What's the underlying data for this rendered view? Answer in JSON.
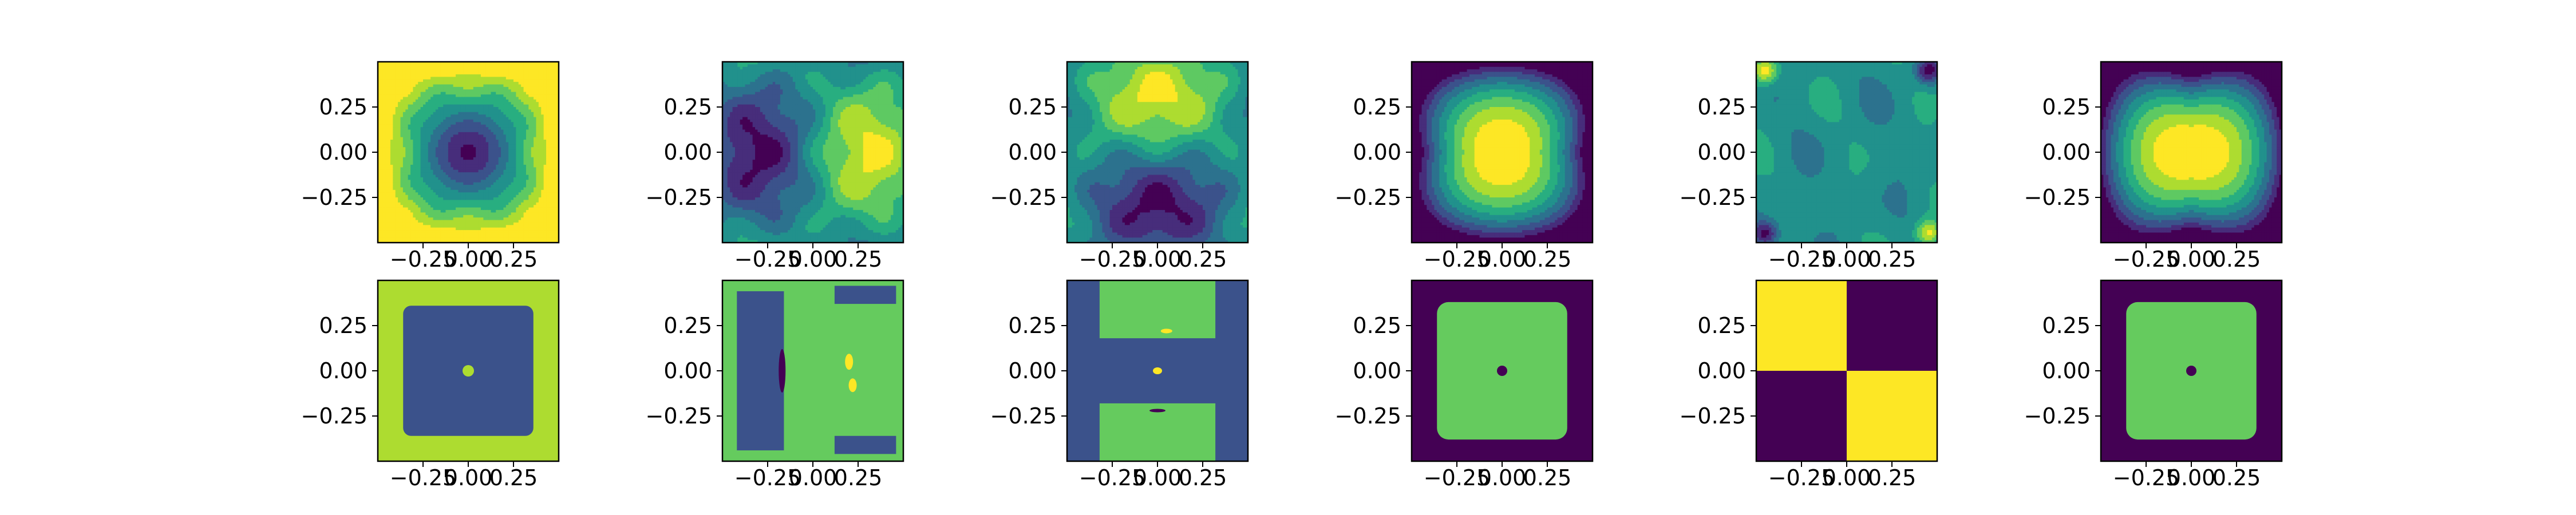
{
  "figure": {
    "rows": 2,
    "cols": 6
  },
  "colormap": {
    "name": "viridis",
    "levels": [
      "#440154",
      "#472d7b",
      "#3b528b",
      "#2c728e",
      "#21918c",
      "#28ae80",
      "#5ec962",
      "#addc30",
      "#fde725"
    ],
    "binary_low": "#3b528b",
    "binary_high": "#65cb5e"
  },
  "chart_data": [
    {
      "type": "heatmap",
      "row": 1,
      "col": 1,
      "kind": "contour",
      "pattern": "radial-min",
      "xlim": [
        -0.5,
        0.5
      ],
      "ylim": [
        -0.5,
        0.5
      ],
      "xticks": [
        "−0.25",
        "0.00",
        "0.25"
      ],
      "yticks": [
        "0.25",
        "0.00",
        "−0.25"
      ]
    },
    {
      "type": "heatmap",
      "row": 1,
      "col": 2,
      "kind": "contour",
      "pattern": "horizontal-dipole",
      "xlim": [
        -0.5,
        0.5
      ],
      "ylim": [
        -0.5,
        0.5
      ],
      "xticks": [
        "−0.25",
        "0.00",
        "0.25"
      ],
      "yticks": [
        "0.25",
        "0.00",
        "−0.25"
      ]
    },
    {
      "type": "heatmap",
      "row": 1,
      "col": 3,
      "kind": "contour",
      "pattern": "vertical-dipole",
      "xlim": [
        -0.5,
        0.5
      ],
      "ylim": [
        -0.5,
        0.5
      ],
      "xticks": [
        "−0.25",
        "0.00",
        "0.25"
      ],
      "yticks": [
        "0.25",
        "0.00",
        "−0.25"
      ]
    },
    {
      "type": "heatmap",
      "row": 1,
      "col": 4,
      "kind": "contour",
      "pattern": "hourglass-max",
      "xlim": [
        -0.5,
        0.5
      ],
      "ylim": [
        -0.5,
        0.5
      ],
      "xticks": [
        "−0.25",
        "0.00",
        "0.25"
      ],
      "yticks": [
        "0.25",
        "0.00",
        "−0.25"
      ]
    },
    {
      "type": "heatmap",
      "row": 1,
      "col": 5,
      "kind": "contour",
      "pattern": "corner-diagonal",
      "xlim": [
        -0.5,
        0.5
      ],
      "ylim": [
        -0.5,
        0.5
      ],
      "xticks": [
        "−0.25",
        "0.00",
        "0.25"
      ],
      "yticks": [
        "0.25",
        "0.00",
        "−0.25"
      ]
    },
    {
      "type": "heatmap",
      "row": 1,
      "col": 6,
      "kind": "contour",
      "pattern": "bowtie-max",
      "xlim": [
        -0.5,
        0.5
      ],
      "ylim": [
        -0.5,
        0.5
      ],
      "xticks": [
        "−0.25",
        "0.00",
        "0.25"
      ],
      "yticks": [
        "0.25",
        "0.00",
        "−0.25"
      ]
    },
    {
      "type": "heatmap",
      "row": 2,
      "col": 1,
      "kind": "classes",
      "pattern": "class-square",
      "xlim": [
        -0.5,
        0.5
      ],
      "ylim": [
        -0.5,
        0.5
      ],
      "xticks": [
        "−0.25",
        "0.00",
        "0.25"
      ],
      "yticks": [
        "0.25",
        "0.00",
        "−0.25"
      ]
    },
    {
      "type": "heatmap",
      "row": 2,
      "col": 2,
      "kind": "classes",
      "pattern": "class-vertical-bands",
      "xlim": [
        -0.5,
        0.5
      ],
      "ylim": [
        -0.5,
        0.5
      ],
      "xticks": [
        "−0.25",
        "0.00",
        "0.25"
      ],
      "yticks": [
        "0.25",
        "0.00",
        "−0.25"
      ]
    },
    {
      "type": "heatmap",
      "row": 2,
      "col": 3,
      "kind": "classes",
      "pattern": "class-horizontal-band",
      "xlim": [
        -0.5,
        0.5
      ],
      "ylim": [
        -0.5,
        0.5
      ],
      "xticks": [
        "−0.25",
        "0.00",
        "0.25"
      ],
      "yticks": [
        "0.25",
        "0.00",
        "−0.25"
      ]
    },
    {
      "type": "heatmap",
      "row": 2,
      "col": 4,
      "kind": "classes",
      "pattern": "class-square-dark",
      "xlim": [
        -0.5,
        0.5
      ],
      "ylim": [
        -0.5,
        0.5
      ],
      "xticks": [
        "−0.25",
        "0.00",
        "0.25"
      ],
      "yticks": [
        "0.25",
        "0.00",
        "−0.25"
      ]
    },
    {
      "type": "heatmap",
      "row": 2,
      "col": 5,
      "kind": "classes",
      "pattern": "class-quadrants",
      "xlim": [
        -0.5,
        0.5
      ],
      "ylim": [
        -0.5,
        0.5
      ],
      "xticks": [
        "−0.25",
        "0.00",
        "0.25"
      ],
      "yticks": [
        "0.25",
        "0.00",
        "−0.25"
      ]
    },
    {
      "type": "heatmap",
      "row": 2,
      "col": 6,
      "kind": "classes",
      "pattern": "class-square-dark",
      "xlim": [
        -0.5,
        0.5
      ],
      "ylim": [
        -0.5,
        0.5
      ],
      "xticks": [
        "−0.25",
        "0.00",
        "0.25"
      ],
      "yticks": [
        "0.25",
        "0.00",
        "−0.25"
      ]
    }
  ]
}
